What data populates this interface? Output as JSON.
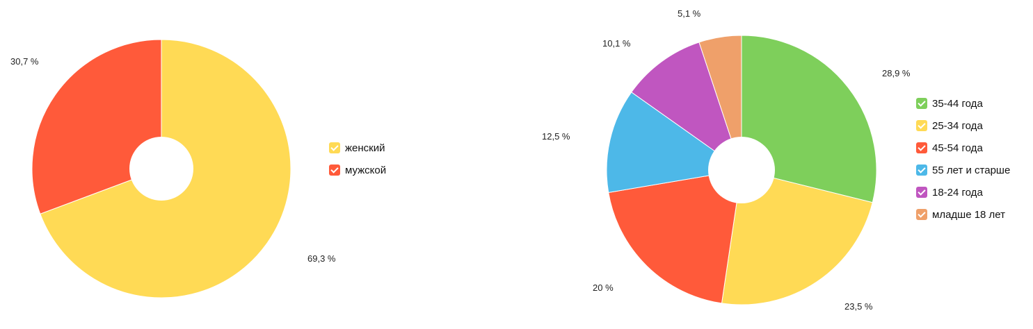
{
  "chart_data": [
    {
      "type": "pie",
      "donut": true,
      "categories": [
        "женский",
        "мужской"
      ],
      "values": [
        69.3,
        30.7
      ],
      "labels": [
        "69,3 %",
        "30,7 %"
      ],
      "colors": [
        "#FFDA55",
        "#FF5A3A"
      ],
      "legend": "right"
    },
    {
      "type": "pie",
      "donut": true,
      "categories": [
        "35-44 года",
        "25-34 года",
        "45-54 года",
        "55 лет и старше",
        "18-24 года",
        "младше 18 лет"
      ],
      "values": [
        28.9,
        23.5,
        20,
        12.5,
        10.1,
        5.1
      ],
      "labels": [
        "28,9 %",
        "23,5 %",
        "20 %",
        "12,5 %",
        "10,1 %",
        "5,1 %"
      ],
      "colors": [
        "#7ECF5B",
        "#FFDA55",
        "#FF5A3A",
        "#4DB8E8",
        "#C056C0",
        "#EFA06A"
      ],
      "legend": "right"
    }
  ]
}
